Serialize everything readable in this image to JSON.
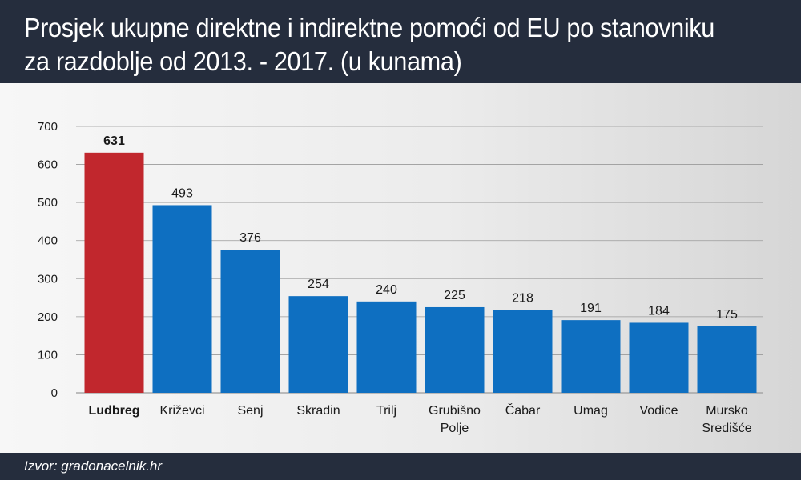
{
  "title": {
    "line1": "Prosjek ukupne direktne i indirektne pomoći od EU po stanovniku",
    "line2": "za razdoblje od 2013. - 2017. (u kunama)"
  },
  "source": "Izvor: gradonacelnik.hr",
  "chart_data": {
    "type": "bar",
    "categories": [
      "Ludbreg",
      "Križevci",
      "Senj",
      "Skradin",
      "Trilj",
      "Grubišno Polje",
      "Čabar",
      "Umag",
      "Vodice",
      "Mursko Središće"
    ],
    "category_lines": [
      [
        "Ludbreg"
      ],
      [
        "Križevci"
      ],
      [
        "Senj"
      ],
      [
        "Skradin"
      ],
      [
        "Trilj"
      ],
      [
        "Grubišno",
        "Polje"
      ],
      [
        "Čabar"
      ],
      [
        "Umag"
      ],
      [
        "Vodice"
      ],
      [
        "Mursko",
        "Središće"
      ]
    ],
    "values": [
      631,
      493,
      376,
      254,
      240,
      225,
      218,
      191,
      184,
      175
    ],
    "ylim": [
      0,
      700
    ],
    "yticks": [
      0,
      100,
      200,
      300,
      400,
      500,
      600,
      700
    ],
    "grid": true,
    "highlight_index": 0,
    "colors": {
      "highlight": "#c1272d",
      "bar": "#0e6fc1",
      "grid": "#9a9a9a",
      "text": "#1a1a1a"
    },
    "xlabel": "",
    "ylabel": ""
  }
}
